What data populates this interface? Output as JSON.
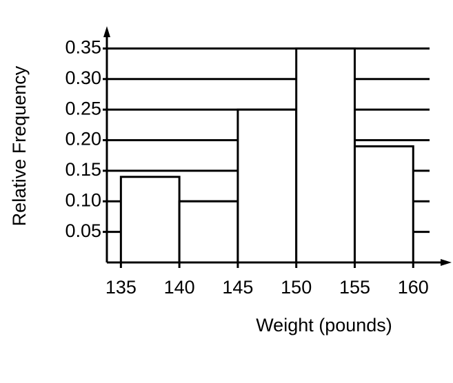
{
  "chart_data": {
    "type": "histogram",
    "xlabel": "Weight (pounds)",
    "ylabel": "Relative Frequency",
    "bins": [
      135,
      140,
      145,
      150,
      155,
      160
    ],
    "values": [
      0.14,
      0.1,
      0.25,
      0.35,
      0.19
    ],
    "color": "#ffffff",
    "xlim": [
      133.8,
      161.4
    ],
    "ylim": [
      0,
      0.382
    ],
    "xticks": [
      135,
      140,
      145,
      150,
      155,
      160
    ],
    "yticks": [
      0.05,
      {
        "value": 0.1,
        "label": "0.10"
      },
      0.15,
      {
        "value": 0.2,
        "label": "0.20"
      },
      0.25,
      {
        "value": 0.3,
        "label": "0.30"
      },
      0.35
    ],
    "grid": true
  }
}
